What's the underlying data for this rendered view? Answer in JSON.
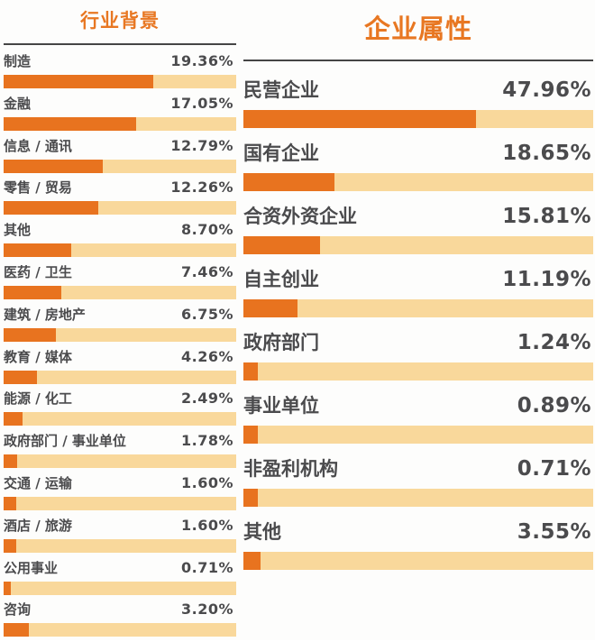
{
  "colors": {
    "bar_fill": "#e8731f",
    "bar_track": "#f9d89b",
    "title_accent": "#e87722",
    "label_text": "#4b4b4d",
    "rule_line": "#454545"
  },
  "chart_data": [
    {
      "type": "bar",
      "orientation": "horizontal",
      "title": "行业背景",
      "value_suffix": "%",
      "bar_scale_max": 30,
      "min_bar_pct": 3,
      "legend": "none",
      "grid": "off",
      "categories": [
        "制造",
        "金融",
        "信息 / 通讯",
        "零售 / 贸易",
        "其他",
        "医药 / 卫生",
        "建筑 / 房地产",
        "教育 / 媒体",
        "能源 / 化工",
        "政府部门 / 事业单位",
        "交通 / 运输",
        "酒店 / 旅游",
        "公用事业",
        "咨询"
      ],
      "values": [
        19.36,
        17.05,
        12.79,
        12.26,
        8.7,
        7.46,
        6.75,
        4.26,
        2.49,
        1.78,
        1.6,
        1.6,
        0.71,
        3.2
      ],
      "items": [
        {
          "label": "制造",
          "value": 19.36,
          "display": "19.36%"
        },
        {
          "label": "金融",
          "value": 17.05,
          "display": "17.05%"
        },
        {
          "label": "信息 / 通讯",
          "value": 12.79,
          "display": "12.79%"
        },
        {
          "label": "零售 / 贸易",
          "value": 12.26,
          "display": "12.26%"
        },
        {
          "label": "其他",
          "value": 8.7,
          "display": "8.70%"
        },
        {
          "label": "医药 / 卫生",
          "value": 7.46,
          "display": "7.46%"
        },
        {
          "label": "建筑 / 房地产",
          "value": 6.75,
          "display": "6.75%"
        },
        {
          "label": "教育 / 媒体",
          "value": 4.26,
          "display": "4.26%"
        },
        {
          "label": "能源 / 化工",
          "value": 2.49,
          "display": "2.49%"
        },
        {
          "label": "政府部门 / 事业单位",
          "value": 1.78,
          "display": "1.78%"
        },
        {
          "label": "交通 / 运输",
          "value": 1.6,
          "display": "1.60%"
        },
        {
          "label": "酒店 / 旅游",
          "value": 1.6,
          "display": "1.60%"
        },
        {
          "label": "公用事业",
          "value": 0.71,
          "display": "0.71%"
        },
        {
          "label": "咨询",
          "value": 3.2,
          "display": "3.20%"
        }
      ]
    },
    {
      "type": "bar",
      "orientation": "horizontal",
      "title": "企业属性",
      "value_suffix": "%",
      "bar_scale_max": 72,
      "min_bar_pct": 4,
      "legend": "none",
      "grid": "off",
      "categories": [
        "民营企业",
        "国有企业",
        "合资外资企业",
        "自主创业",
        "政府部门",
        "事业单位",
        "非盈利机构",
        "其他"
      ],
      "values": [
        47.96,
        18.65,
        15.81,
        11.19,
        1.24,
        0.89,
        0.71,
        3.55
      ],
      "items": [
        {
          "label": "民营企业",
          "value": 47.96,
          "display": "47.96%"
        },
        {
          "label": "国有企业",
          "value": 18.65,
          "display": "18.65%"
        },
        {
          "label": "合资外资企业",
          "value": 15.81,
          "display": "15.81%"
        },
        {
          "label": "自主创业",
          "value": 11.19,
          "display": "11.19%"
        },
        {
          "label": "政府部门",
          "value": 1.24,
          "display": "1.24%"
        },
        {
          "label": "事业单位",
          "value": 0.89,
          "display": "0.89%"
        },
        {
          "label": "非盈利机构",
          "value": 0.71,
          "display": "0.71%"
        },
        {
          "label": "其他",
          "value": 3.55,
          "display": "3.55%"
        }
      ]
    }
  ]
}
